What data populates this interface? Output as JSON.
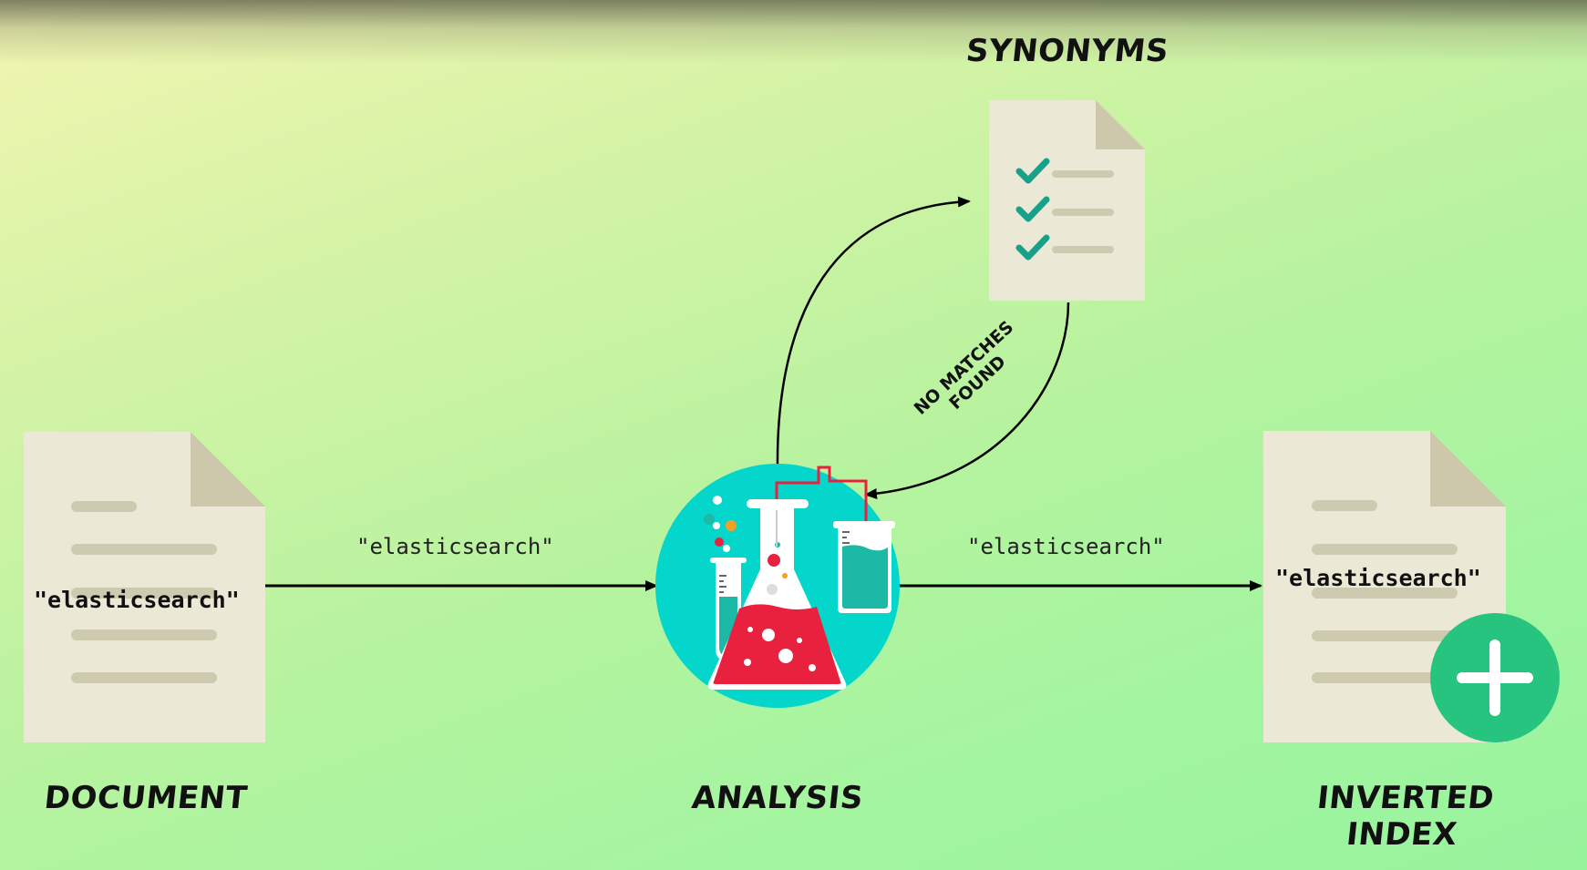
{
  "captions": {
    "synonyms": "SYNONYMS",
    "document": "DOCUMENT",
    "analysis": "ANALYSIS",
    "inverted_index": "INVERTED INDEX"
  },
  "edge_labels": {
    "doc_to_analysis": "\"elasticsearch\"",
    "analysis_to_index": "\"elasticsearch\"",
    "no_matches_line1": "NO MATCHES",
    "no_matches_line2": "FOUND"
  },
  "document_text": "\"elasticsearch\"",
  "index_text": "\"elasticsearch\"",
  "icons": {
    "synonyms_doc": "checklist-document-icon",
    "source_doc": "document-icon",
    "index_doc": "document-icon",
    "analysis": "lab-flask-icon",
    "add": "plus-circle-icon"
  },
  "colors": {
    "paper": "#ece8d6",
    "paper_fold": "#cdc8ab",
    "paper_lines": "#cdcaaf",
    "check": "#18a089",
    "lab_circle": "#05d6cc",
    "flask_liquid": "#e8213f",
    "plus_circle": "#27c47f"
  }
}
